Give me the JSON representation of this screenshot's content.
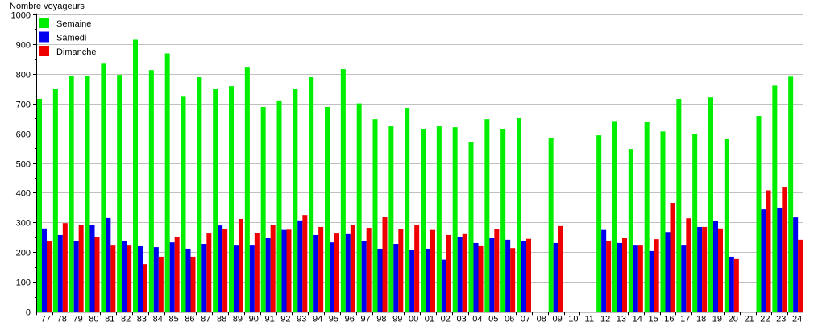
{
  "chart_data": {
    "type": "bar",
    "title": "",
    "ylabel": "Nombre voyageurs",
    "xlabel": "",
    "ylim": [
      0,
      1000
    ],
    "yticks": [
      0,
      100,
      200,
      300,
      400,
      500,
      600,
      700,
      800,
      900,
      1000
    ],
    "grid": true,
    "legend_placement": "top-left",
    "categories": [
      "77",
      "78",
      "79",
      "80",
      "81",
      "82",
      "83",
      "84",
      "85",
      "86",
      "87",
      "88",
      "89",
      "90",
      "91",
      "92",
      "93",
      "94",
      "95",
      "96",
      "97",
      "98",
      "99",
      "00",
      "01",
      "02",
      "03",
      "04",
      "05",
      "06",
      "07",
      "08",
      "09",
      "10",
      "11",
      "12",
      "13",
      "14",
      "15",
      "16",
      "17",
      "18",
      "19",
      "20",
      "21",
      "22",
      "23",
      "24"
    ],
    "series": [
      {
        "name": "Semaine",
        "color": "#00ee00",
        "values": [
          715,
          748,
          793,
          793,
          836,
          796,
          914,
          812,
          868,
          725,
          788,
          748,
          758,
          823,
          688,
          710,
          748,
          788,
          688,
          815,
          700,
          647,
          623,
          685,
          615,
          623,
          620,
          570,
          647,
          615,
          652,
          null,
          585,
          null,
          null,
          593,
          641,
          547,
          639,
          606,
          715,
          598,
          720,
          580,
          null,
          658,
          760,
          790
        ]
      },
      {
        "name": "Samedi",
        "color": "#0000ee",
        "values": [
          280,
          258,
          238,
          293,
          315,
          238,
          220,
          217,
          233,
          212,
          228,
          290,
          225,
          225,
          247,
          275,
          307,
          258,
          233,
          261,
          238,
          212,
          228,
          207,
          212,
          175,
          250,
          231,
          247,
          242,
          239,
          null,
          231,
          null,
          null,
          275,
          231,
          225,
          204,
          268,
          225,
          285,
          304,
          185,
          null,
          344,
          350,
          317
        ]
      },
      {
        "name": "Dimanche",
        "color": "#ee0000",
        "values": [
          238,
          298,
          293,
          250,
          225,
          225,
          160,
          185,
          250,
          185,
          263,
          278,
          312,
          265,
          293,
          276,
          325,
          285,
          263,
          293,
          282,
          320,
          277,
          293,
          275,
          258,
          261,
          223,
          277,
          214,
          245,
          null,
          288,
          null,
          null,
          239,
          247,
          225,
          244,
          366,
          314,
          285,
          280,
          177,
          null,
          408,
          420,
          242
        ]
      }
    ]
  }
}
